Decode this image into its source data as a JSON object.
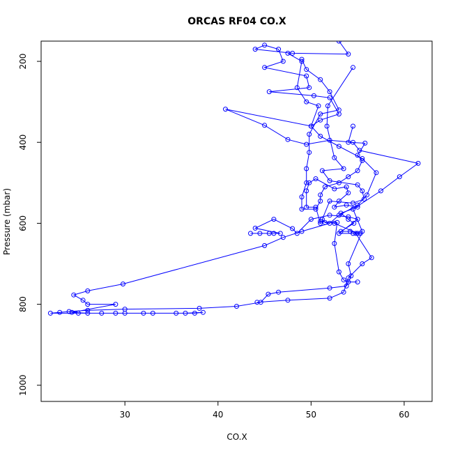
{
  "chart_data": {
    "type": "line",
    "title": "ORCAS RF04 CO.X",
    "xlabel": "CO.X",
    "ylabel": "Pressure (mbar)",
    "xlim": [
      21,
      63
    ],
    "ylim": [
      1040,
      150
    ],
    "y_reversed": true,
    "grid": false,
    "marker": "open-circle",
    "color": "#0000ff",
    "x_ticks": [
      30,
      40,
      50,
      60
    ],
    "y_ticks": [
      200,
      400,
      600,
      800,
      1000
    ],
    "series": [
      {
        "values": [
          [
            53.0,
            150
          ],
          [
            54.0,
            182
          ],
          [
            48.0,
            180
          ],
          [
            44.0,
            170
          ],
          [
            45.0,
            160
          ],
          [
            46.5,
            170
          ],
          [
            47.0,
            200
          ],
          [
            45.0,
            215
          ],
          [
            49.5,
            236
          ],
          [
            49.8,
            265
          ],
          [
            45.5,
            275
          ],
          [
            50.3,
            285
          ],
          [
            52.0,
            290
          ],
          [
            53.0,
            330
          ],
          [
            51.0,
            345
          ],
          [
            50.0,
            360
          ],
          [
            40.8,
            318
          ],
          [
            45.0,
            358
          ],
          [
            47.5,
            393
          ],
          [
            49.5,
            405
          ],
          [
            52.0,
            395
          ],
          [
            54.5,
            400
          ],
          [
            55.2,
            420
          ],
          [
            61.5,
            452
          ],
          [
            59.5,
            485
          ],
          [
            57.5,
            520
          ],
          [
            54.5,
            565
          ],
          [
            55.5,
            620
          ],
          [
            54.0,
            700
          ],
          [
            54.3,
            730
          ],
          [
            53.8,
            755
          ],
          [
            52.0,
            760
          ],
          [
            46.5,
            770
          ],
          [
            45.4,
            775
          ],
          [
            44.6,
            795
          ],
          [
            42.0,
            805
          ],
          [
            38.0,
            810
          ],
          [
            30.0,
            812
          ],
          [
            26.0,
            815
          ],
          [
            24.0,
            818
          ],
          [
            23.0,
            820
          ],
          [
            22.0,
            822
          ],
          [
            25.0,
            822
          ],
          [
            27.5,
            822
          ],
          [
            30.0,
            822
          ],
          [
            32.0,
            822
          ],
          [
            35.5,
            822
          ],
          [
            37.5,
            822
          ],
          [
            38.4,
            820
          ],
          [
            36.5,
            822
          ],
          [
            33.0,
            822
          ],
          [
            29.0,
            822
          ],
          [
            26.0,
            822
          ],
          [
            24.3,
            820
          ],
          [
            29.0,
            800
          ],
          [
            26.0,
            800
          ],
          [
            25.5,
            790
          ],
          [
            24.5,
            777
          ],
          [
            26.0,
            767
          ],
          [
            29.8,
            750
          ],
          [
            45.0,
            655
          ],
          [
            47.0,
            635
          ],
          [
            49.0,
            620
          ],
          [
            52.0,
            600
          ],
          [
            53.0,
            580
          ],
          [
            55.0,
            555
          ],
          [
            56.0,
            530
          ],
          [
            57.0,
            475
          ],
          [
            55.5,
            440
          ],
          [
            53.0,
            410
          ],
          [
            51.0,
            385
          ],
          [
            50.0,
            360
          ],
          [
            50.8,
            310
          ],
          [
            49.5,
            300
          ],
          [
            48.5,
            265
          ],
          [
            49.0,
            200
          ],
          [
            47.5,
            180
          ]
        ]
      },
      {
        "values": [
          [
            43.5,
            625
          ],
          [
            44.5,
            625
          ],
          [
            45.5,
            625
          ],
          [
            46.0,
            625
          ],
          [
            46.7,
            625
          ],
          [
            44.0,
            612
          ],
          [
            46.0,
            590
          ],
          [
            48.0,
            613
          ],
          [
            48.5,
            625
          ],
          [
            50.0,
            590
          ],
          [
            52.0,
            580
          ],
          [
            54.0,
            584
          ],
          [
            55.0,
            590
          ],
          [
            53.0,
            625
          ],
          [
            54.5,
            625
          ],
          [
            55.0,
            625
          ],
          [
            52.5,
            600
          ],
          [
            51.0,
            595
          ],
          [
            51.0,
            600
          ],
          [
            50.5,
            560
          ],
          [
            49.5,
            560
          ],
          [
            49.5,
            520
          ],
          [
            49.8,
            500
          ],
          [
            50.5,
            490
          ],
          [
            52.5,
            515
          ],
          [
            53.8,
            510
          ],
          [
            54.0,
            525
          ],
          [
            53.0,
            545
          ],
          [
            52.5,
            560
          ],
          [
            53.8,
            555
          ],
          [
            55.0,
            560
          ],
          [
            53.2,
            575
          ],
          [
            54.0,
            590
          ],
          [
            54.6,
            600
          ],
          [
            53.2,
            620
          ],
          [
            54.2,
            620
          ],
          [
            55.3,
            625
          ],
          [
            54.8,
            625
          ],
          [
            56.5,
            685
          ],
          [
            55.5,
            700
          ],
          [
            54.0,
            735
          ],
          [
            53.5,
            770
          ],
          [
            52.0,
            785
          ],
          [
            47.5,
            790
          ],
          [
            44.2,
            795
          ]
        ]
      },
      {
        "values": [
          [
            54.5,
            360
          ],
          [
            54.0,
            400
          ],
          [
            55.8,
            402
          ],
          [
            55.0,
            432
          ],
          [
            55.5,
            445
          ],
          [
            55.0,
            470
          ],
          [
            54.0,
            485
          ],
          [
            53.0,
            500
          ],
          [
            51.5,
            510
          ],
          [
            51.0,
            530
          ],
          [
            51.0,
            545
          ],
          [
            50.5,
            565
          ],
          [
            49.0,
            565
          ],
          [
            49.0,
            535
          ],
          [
            49.5,
            500
          ],
          [
            49.5,
            465
          ],
          [
            49.8,
            425
          ],
          [
            49.8,
            380
          ],
          [
            51.0,
            330
          ],
          [
            53.0,
            320
          ],
          [
            52.0,
            275
          ],
          [
            51.0,
            245
          ],
          [
            49.5,
            220
          ],
          [
            49.0,
            195
          ]
        ]
      },
      {
        "values": [
          [
            54.5,
            215
          ],
          [
            51.8,
            310
          ],
          [
            51.7,
            360
          ],
          [
            52.5,
            438
          ],
          [
            53.5,
            465
          ],
          [
            51.2,
            470
          ],
          [
            52.0,
            495
          ],
          [
            55.0,
            505
          ],
          [
            55.5,
            520
          ],
          [
            55.7,
            540
          ],
          [
            54.5,
            550
          ],
          [
            52.0,
            545
          ],
          [
            51.2,
            590
          ],
          [
            51.5,
            598
          ],
          [
            52.8,
            598
          ],
          [
            52.5,
            650
          ],
          [
            53.0,
            720
          ],
          [
            53.5,
            740
          ],
          [
            54.0,
            745
          ],
          [
            55.0,
            745
          ]
        ]
      }
    ]
  }
}
